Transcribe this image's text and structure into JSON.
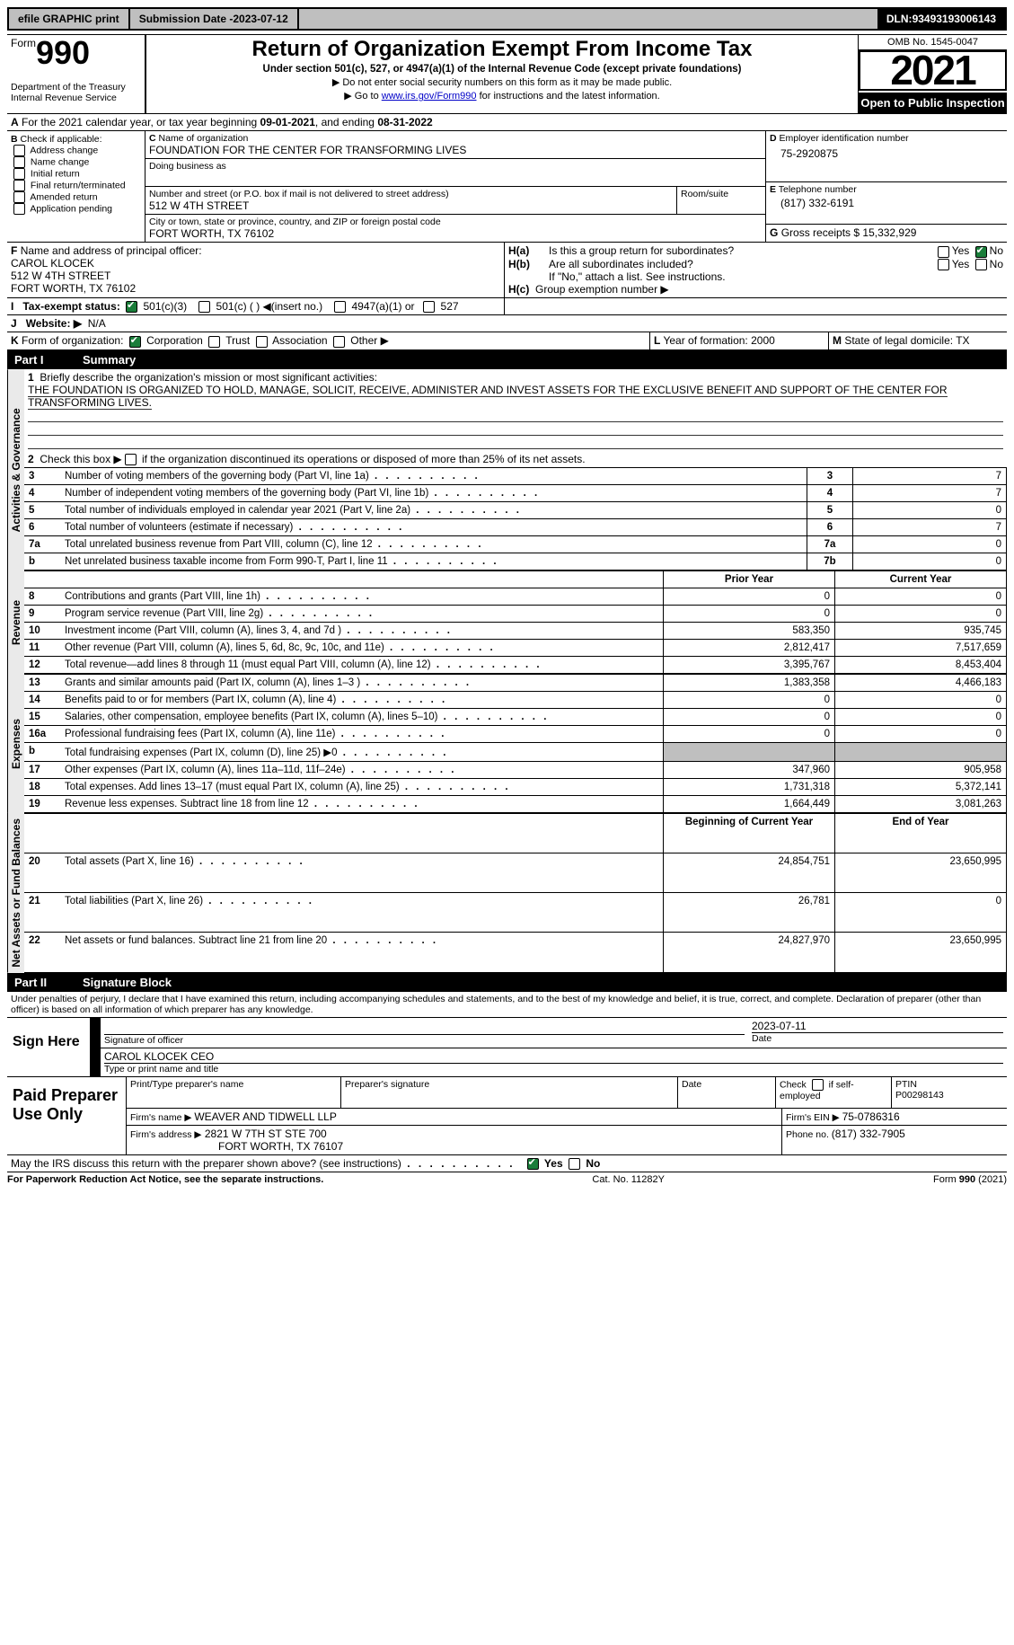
{
  "topbar": {
    "efile": "efile GRAPHIC print",
    "sub_label": "Submission Date - ",
    "sub_date": "2023-07-12",
    "dln_label": "DLN: ",
    "dln": "93493193006143"
  },
  "header": {
    "form_prefix": "Form",
    "form_number": "990",
    "dept": "Department of the Treasury Internal Revenue Service",
    "title": "Return of Organization Exempt From Income Tax",
    "subtitle": "Under section 501(c), 527, or 4947(a)(1) of the Internal Revenue Code (except private foundations)",
    "note1": "Do not enter social security numbers on this form as it may be made public.",
    "note2_pre": "Go to ",
    "note2_link": "www.irs.gov/Form990",
    "note2_post": " for instructions and the latest information.",
    "omb_label": "OMB No. ",
    "omb": "1545-0047",
    "year": "2021",
    "badge": "Open to Public Inspection"
  },
  "A": {
    "text": "For the 2021 calendar year, or tax year beginning ",
    "begin": "09-01-2021",
    "mid": ", and ending ",
    "end": "08-31-2022"
  },
  "B": {
    "title": "Check if applicable:",
    "items": [
      "Address change",
      "Name change",
      "Initial return",
      "Final return/terminated",
      "Amended return",
      "Application pending"
    ]
  },
  "C": {
    "name_label": "Name of organization",
    "name": "FOUNDATION FOR THE CENTER FOR TRANSFORMING LIVES",
    "dba_label": "Doing business as",
    "street_label": "Number and street (or P.O. box if mail is not delivered to street address)",
    "street": "512 W 4TH STREET",
    "room_label": "Room/suite",
    "city_label": "City or town, state or province, country, and ZIP or foreign postal code",
    "city": "FORT WORTH, TX  76102"
  },
  "D": {
    "label": "Employer identification number",
    "value": "75-2920875"
  },
  "E": {
    "label": "Telephone number",
    "value": "(817) 332-6191"
  },
  "G": {
    "label": "Gross receipts $ ",
    "value": "15,332,929"
  },
  "F": {
    "label": "Name and address of principal officer:",
    "name": "CAROL KLOCEK",
    "addr1": "512 W 4TH STREET",
    "addr2": "FORT WORTH, TX  76102"
  },
  "H": {
    "a": "Is this a group return for subordinates?",
    "b": "Are all subordinates included?",
    "bnote": "If \"No,\" attach a list. See instructions.",
    "c": "Group exemption number",
    "yes": "Yes",
    "no": "No"
  },
  "I": {
    "label": "Tax-exempt status:",
    "opts": [
      "501(c)(3)",
      "501(c) (  ) ◀(insert no.)",
      "4947(a)(1) or",
      "527"
    ]
  },
  "J": {
    "label": "Website:",
    "value": "N/A"
  },
  "K": {
    "label": "Form of organization:",
    "opts": [
      "Corporation",
      "Trust",
      "Association",
      "Other"
    ]
  },
  "L": {
    "label": "Year of formation: ",
    "value": "2000"
  },
  "M": {
    "label": "State of legal domicile: ",
    "value": "TX"
  },
  "partI": {
    "tag": "Part I",
    "title": "Summary",
    "q1_label": "Briefly describe the organization's mission or most significant activities:",
    "q1_text": "THE FOUNDATION IS ORGANIZED TO HOLD, MANAGE, SOLICIT, RECEIVE, ADMINISTER AND INVEST ASSETS FOR THE EXCLUSIVE BENEFIT AND SUPPORT OF THE CENTER FOR TRANSFORMING LIVES.",
    "q2": "Check this box ▶  if the organization discontinued its operations or disposed of more than 25% of its net assets.",
    "rows_top": [
      {
        "n": "3",
        "t": "Number of voting members of the governing body (Part VI, line 1a)",
        "box": "3",
        "v": "7"
      },
      {
        "n": "4",
        "t": "Number of independent voting members of the governing body (Part VI, line 1b)",
        "box": "4",
        "v": "7"
      },
      {
        "n": "5",
        "t": "Total number of individuals employed in calendar year 2021 (Part V, line 2a)",
        "box": "5",
        "v": "0"
      },
      {
        "n": "6",
        "t": "Total number of volunteers (estimate if necessary)",
        "box": "6",
        "v": "7"
      },
      {
        "n": "7a",
        "t": "Total unrelated business revenue from Part VIII, column (C), line 12",
        "box": "7a",
        "v": "0"
      },
      {
        "n": "b",
        "t": "Net unrelated business taxable income from Form 990-T, Part I, line 11",
        "box": "7b",
        "v": "0"
      }
    ],
    "col_prior": "Prior Year",
    "col_curr": "Current Year",
    "sections": [
      {
        "side": "Revenue",
        "rows": [
          {
            "n": "8",
            "t": "Contributions and grants (Part VIII, line 1h)",
            "p": "0",
            "c": "0"
          },
          {
            "n": "9",
            "t": "Program service revenue (Part VIII, line 2g)",
            "p": "0",
            "c": "0"
          },
          {
            "n": "10",
            "t": "Investment income (Part VIII, column (A), lines 3, 4, and 7d )",
            "p": "583,350",
            "c": "935,745"
          },
          {
            "n": "11",
            "t": "Other revenue (Part VIII, column (A), lines 5, 6d, 8c, 9c, 10c, and 11e)",
            "p": "2,812,417",
            "c": "7,517,659"
          },
          {
            "n": "12",
            "t": "Total revenue—add lines 8 through 11 (must equal Part VIII, column (A), line 12)",
            "p": "3,395,767",
            "c": "8,453,404"
          }
        ]
      },
      {
        "side": "Expenses",
        "rows": [
          {
            "n": "13",
            "t": "Grants and similar amounts paid (Part IX, column (A), lines 1–3 )",
            "p": "1,383,358",
            "c": "4,466,183"
          },
          {
            "n": "14",
            "t": "Benefits paid to or for members (Part IX, column (A), line 4)",
            "p": "0",
            "c": "0"
          },
          {
            "n": "15",
            "t": "Salaries, other compensation, employee benefits (Part IX, column (A), lines 5–10)",
            "p": "0",
            "c": "0"
          },
          {
            "n": "16a",
            "t": "Professional fundraising fees (Part IX, column (A), line 11e)",
            "p": "0",
            "c": "0"
          },
          {
            "n": "b",
            "t": "Total fundraising expenses (Part IX, column (D), line 25) ▶0",
            "p": "GREY",
            "c": "GREY"
          },
          {
            "n": "17",
            "t": "Other expenses (Part IX, column (A), lines 11a–11d, 11f–24e)",
            "p": "347,960",
            "c": "905,958"
          },
          {
            "n": "18",
            "t": "Total expenses. Add lines 13–17 (must equal Part IX, column (A), line 25)",
            "p": "1,731,318",
            "c": "5,372,141"
          },
          {
            "n": "19",
            "t": "Revenue less expenses. Subtract line 18 from line 12",
            "p": "1,664,449",
            "c": "3,081,263"
          }
        ]
      },
      {
        "side": "Net Assets or Fund Balances",
        "hdr": [
          "Beginning of Current Year",
          "End of Year"
        ],
        "rows": [
          {
            "n": "20",
            "t": "Total assets (Part X, line 16)",
            "p": "24,854,751",
            "c": "23,650,995"
          },
          {
            "n": "21",
            "t": "Total liabilities (Part X, line 26)",
            "p": "26,781",
            "c": "0"
          },
          {
            "n": "22",
            "t": "Net assets or fund balances. Subtract line 21 from line 20",
            "p": "24,827,970",
            "c": "23,650,995"
          }
        ]
      }
    ],
    "side_ag": "Activities & Governance"
  },
  "partII": {
    "tag": "Part II",
    "title": "Signature Block",
    "decl": "Under penalties of perjury, I declare that I have examined this return, including accompanying schedules and statements, and to the best of my knowledge and belief, it is true, correct, and complete. Declaration of preparer (other than officer) is based on all information of which preparer has any knowledge.",
    "sign_here": "Sign Here",
    "sig_officer": "Signature of officer",
    "sig_date": "2023-07-11",
    "date_label": "Date",
    "name_title": "CAROL KLOCEK  CEO",
    "name_title_label": "Type or print name and title",
    "paid": "Paid Preparer Use Only",
    "prep_name_label": "Print/Type preparer's name",
    "prep_sig_label": "Preparer's signature",
    "check_if": "Check          if self-employed",
    "ptin_label": "PTIN",
    "ptin": "P00298143",
    "firm_name_label": "Firm's name    ▶ ",
    "firm_name": "WEAVER AND TIDWELL LLP",
    "firm_ein_label": "Firm's EIN ▶ ",
    "firm_ein": "75-0786316",
    "firm_addr_label": "Firm's address ▶",
    "firm_addr1": "2821 W 7TH ST STE 700",
    "firm_addr2": "FORT WORTH, TX  76107",
    "phone_label": "Phone no. ",
    "phone": "(817) 332-7905",
    "discuss": "May the IRS discuss this return with the preparer shown above? (see instructions)"
  },
  "footer": {
    "pra": "For Paperwork Reduction Act Notice, see the separate instructions.",
    "cat": "Cat. No. 11282Y",
    "form": "Form 990 (2021)"
  }
}
